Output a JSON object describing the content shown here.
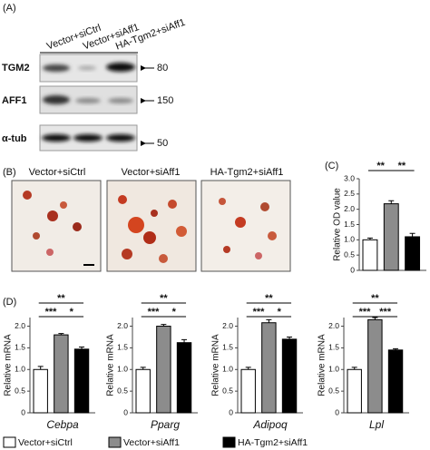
{
  "panels": {
    "a": "(A)",
    "b": "(B)",
    "c": "(C)",
    "d": "(D)"
  },
  "blot": {
    "lanes": [
      "Vector+siCtrl",
      "Vector+siAff1",
      "HA-Tgm2+siAff1"
    ],
    "rows": [
      {
        "name": "TGM2",
        "marker": 80
      },
      {
        "name": "AFF1",
        "marker": 150
      },
      {
        "name": "α-tub",
        "marker": 50
      }
    ]
  },
  "images": {
    "titles": [
      "Vector+siCtrl",
      "Vector+siAff1",
      "HA-Tgm2+siAff1"
    ]
  },
  "legend": [
    {
      "name": "Vector+siCtrl",
      "color": "#ffffff"
    },
    {
      "name": "Vector+siAff1",
      "color": "#8c8c8c"
    },
    {
      "name": "HA-Tgm2+siAff1",
      "color": "#000000"
    }
  ],
  "chart_data": [
    {
      "type": "bar",
      "ylabel": "Relative OD value",
      "values": [
        1.0,
        2.18,
        1.1
      ],
      "errors": [
        0.06,
        0.1,
        0.11
      ],
      "ylim": [
        0,
        3
      ],
      "yticks": [
        0,
        0.5,
        {
          "value": 1,
          "label": "1.0"
        },
        1.5,
        {
          "value": 2,
          "label": "2.0"
        },
        2.5,
        {
          "value": 3,
          "label": "3.0"
        }
      ],
      "annotations": [
        "**",
        "**"
      ]
    },
    {
      "type": "bar",
      "xlabel": "Cebpa",
      "ylabel": "Relative mRNA",
      "values": [
        1.0,
        1.8,
        1.47
      ],
      "errors": [
        0.07,
        0.03,
        0.05
      ],
      "ylim": [
        0,
        2.2
      ],
      "yticks": [
        0,
        0.5,
        {
          "value": 1,
          "label": "1.0"
        },
        1.5,
        {
          "value": 2,
          "label": "2.0"
        }
      ],
      "annotations": [
        "**",
        "***",
        "*"
      ]
    },
    {
      "type": "bar",
      "xlabel": "Pparg",
      "ylabel": "Relative mRNA",
      "values": [
        1.0,
        2.0,
        1.62
      ],
      "errors": [
        0.05,
        0.04,
        0.07
      ],
      "ylim": [
        0,
        2.2
      ],
      "yticks": [
        0,
        0.5,
        {
          "value": 1,
          "label": "1.0"
        },
        1.5,
        {
          "value": 2,
          "label": "2.0"
        }
      ],
      "annotations": [
        "**",
        "***",
        "*"
      ]
    },
    {
      "type": "bar",
      "xlabel": "Adipoq",
      "ylabel": "Relative mRNA",
      "values": [
        1.0,
        2.08,
        1.7
      ],
      "errors": [
        0.05,
        0.07,
        0.05
      ],
      "ylim": [
        0,
        2.2
      ],
      "yticks": [
        0,
        0.5,
        {
          "value": 1,
          "label": "1.0"
        },
        1.5,
        {
          "value": 2,
          "label": "2.0"
        }
      ],
      "annotations": [
        "**",
        "***",
        "*"
      ]
    },
    {
      "type": "bar",
      "xlabel": "Lpl",
      "ylabel": "Relative mRNA",
      "values": [
        1.0,
        2.15,
        1.45
      ],
      "errors": [
        0.05,
        0.05,
        0.03
      ],
      "ylim": [
        0,
        2.2
      ],
      "yticks": [
        0,
        0.5,
        {
          "value": 1,
          "label": "1.0"
        },
        1.5,
        {
          "value": 2,
          "label": "2.0"
        }
      ],
      "annotations": [
        "**",
        "***",
        "***"
      ]
    }
  ]
}
